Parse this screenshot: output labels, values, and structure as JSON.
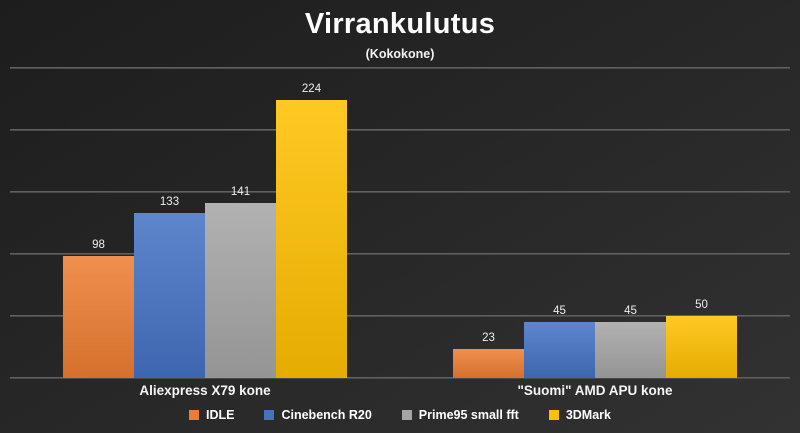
{
  "page": {
    "background_top": "#1d1d1d",
    "background_bottom": "#323232",
    "gridline_color": "#5c5c5c",
    "text_color": "#ffffff"
  },
  "chart_data": {
    "type": "bar",
    "title": "Virrankulutus",
    "subtitle": "(Kokokone)",
    "categories": [
      "Aliexpress X79 kone",
      "\"Suomi\" AMD APU kone"
    ],
    "series": [
      {
        "name": "IDLE",
        "color": "#ED7D31",
        "values": [
          98,
          23
        ]
      },
      {
        "name": "Cinebench R20",
        "color": "#4472C4",
        "values": [
          133,
          45
        ]
      },
      {
        "name": "Prime95 small fft",
        "color": "#A5A5A5",
        "values": [
          141,
          45
        ]
      },
      {
        "name": "3DMark",
        "color": "#FFC000",
        "values": [
          224,
          50
        ]
      }
    ],
    "ylim": [
      0,
      250
    ],
    "gridline_step": 50,
    "grid": true,
    "y_axis_labels": false,
    "data_labels": true,
    "legend_position": "bottom"
  }
}
